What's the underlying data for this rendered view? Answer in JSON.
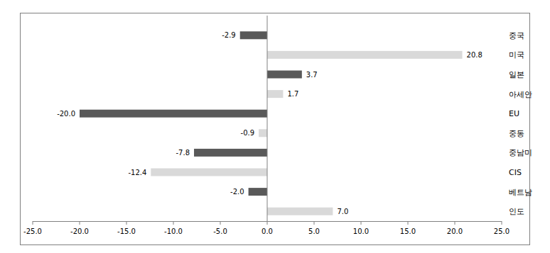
{
  "chart_data": {
    "type": "bar",
    "orientation": "horizontal",
    "categories": [
      "중국",
      "미국",
      "일본",
      "아세안",
      "EU",
      "중동",
      "중남미",
      "CIS",
      "베트남",
      "인도"
    ],
    "values": [
      -2.9,
      20.8,
      3.7,
      1.7,
      -20.0,
      -0.9,
      -7.8,
      -12.4,
      -2.0,
      7.0
    ],
    "value_labels": [
      "-2.9",
      "20.8",
      "3.7",
      "1.7",
      "-20.0",
      "-0.9",
      "-7.8",
      "-12.4",
      "-2.0",
      "7.0"
    ],
    "colors": [
      "#595959",
      "#d9d9d9",
      "#595959",
      "#d9d9d9",
      "#595959",
      "#d9d9d9",
      "#595959",
      "#d9d9d9",
      "#595959",
      "#d9d9d9"
    ],
    "xlim": [
      -25,
      25
    ],
    "xticks": [
      {
        "value": -25,
        "label": "-25.0"
      },
      {
        "value": -20,
        "label": "-20.0"
      },
      {
        "value": -15,
        "label": "-15.0"
      },
      {
        "value": -10,
        "label": "-10.0"
      },
      {
        "value": -5,
        "label": "-5.0"
      },
      {
        "value": 0,
        "label": "0.0"
      },
      {
        "value": 5,
        "label": "5.0"
      },
      {
        "value": 10,
        "label": "10.0"
      },
      {
        "value": 15,
        "label": "15.0"
      },
      {
        "value": 20,
        "label": "20.0"
      },
      {
        "value": 25,
        "label": "25.0"
      }
    ],
    "grid": false,
    "data_labels": true
  }
}
